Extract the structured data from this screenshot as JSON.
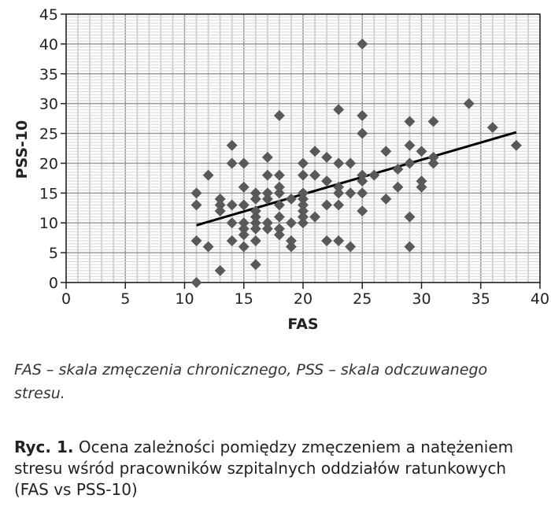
{
  "chart_data": {
    "type": "scatter",
    "xlabel": "FAS",
    "ylabel": "PSS-10",
    "xlim": [
      0,
      40
    ],
    "ylim": [
      0,
      45
    ],
    "xticks": [
      "0",
      "5",
      "10",
      "15",
      "20",
      "25",
      "30",
      "35",
      "40"
    ],
    "yticks": [
      "0",
      "5",
      "10",
      "15",
      "20",
      "25",
      "30",
      "35",
      "40",
      "45"
    ],
    "grid": true,
    "marker_color": "#595959",
    "points": [
      [
        11,
        15
      ],
      [
        11,
        13
      ],
      [
        11,
        7
      ],
      [
        11,
        0
      ],
      [
        12,
        18
      ],
      [
        12,
        6
      ],
      [
        13,
        14
      ],
      [
        13,
        13
      ],
      [
        13,
        12
      ],
      [
        13,
        2
      ],
      [
        14,
        23
      ],
      [
        14,
        20
      ],
      [
        14,
        13
      ],
      [
        14,
        10
      ],
      [
        14,
        7
      ],
      [
        15,
        20
      ],
      [
        15,
        16
      ],
      [
        15,
        13
      ],
      [
        15,
        10
      ],
      [
        15,
        9
      ],
      [
        15,
        8
      ],
      [
        15,
        6
      ],
      [
        16,
        15
      ],
      [
        16,
        14
      ],
      [
        16,
        12
      ],
      [
        16,
        11
      ],
      [
        16,
        10
      ],
      [
        16,
        9
      ],
      [
        16,
        7
      ],
      [
        16,
        3
      ],
      [
        17,
        21
      ],
      [
        17,
        18
      ],
      [
        17,
        15
      ],
      [
        17,
        14
      ],
      [
        17,
        10
      ],
      [
        17,
        9
      ],
      [
        18,
        28
      ],
      [
        18,
        18
      ],
      [
        18,
        16
      ],
      [
        18,
        15
      ],
      [
        18,
        13
      ],
      [
        18,
        11
      ],
      [
        18,
        9
      ],
      [
        18,
        8
      ],
      [
        19,
        14
      ],
      [
        19,
        10
      ],
      [
        19,
        7
      ],
      [
        19,
        6
      ],
      [
        20,
        20
      ],
      [
        20,
        18
      ],
      [
        20,
        15
      ],
      [
        20,
        14
      ],
      [
        20,
        13
      ],
      [
        20,
        12
      ],
      [
        20,
        11
      ],
      [
        20,
        10
      ],
      [
        21,
        22
      ],
      [
        21,
        18
      ],
      [
        21,
        11
      ],
      [
        22,
        21
      ],
      [
        22,
        17
      ],
      [
        22,
        13
      ],
      [
        22,
        7
      ],
      [
        23,
        29
      ],
      [
        23,
        20
      ],
      [
        23,
        16
      ],
      [
        23,
        15
      ],
      [
        23,
        13
      ],
      [
        23,
        7
      ],
      [
        24,
        20
      ],
      [
        24,
        15
      ],
      [
        24,
        6
      ],
      [
        25,
        40
      ],
      [
        25,
        28
      ],
      [
        25,
        25
      ],
      [
        25,
        18
      ],
      [
        25,
        17
      ],
      [
        25,
        15
      ],
      [
        25,
        12
      ],
      [
        26,
        18
      ],
      [
        27,
        22
      ],
      [
        27,
        14
      ],
      [
        28,
        19
      ],
      [
        28,
        16
      ],
      [
        29,
        27
      ],
      [
        29,
        23
      ],
      [
        29,
        20
      ],
      [
        29,
        11
      ],
      [
        29,
        6
      ],
      [
        30,
        22
      ],
      [
        30,
        17
      ],
      [
        30,
        16
      ],
      [
        31,
        27
      ],
      [
        31,
        21
      ],
      [
        31,
        20
      ],
      [
        34,
        30
      ],
      [
        36,
        26
      ],
      [
        38,
        23
      ]
    ],
    "trendline": [
      [
        11,
        9.6
      ],
      [
        38,
        25.2
      ]
    ]
  },
  "note": "FAS – skala zmęczenia chronicznego, PSS – skala odczuwanego stresu.",
  "caption": {
    "label": "Ryc. 1.",
    "text": " Ocena zależności pomiędzy zmęczeniem a natężeniem stresu wśród pracowników szpitalnych oddziałów ratunkowych (FAS vs PSS-10)"
  }
}
